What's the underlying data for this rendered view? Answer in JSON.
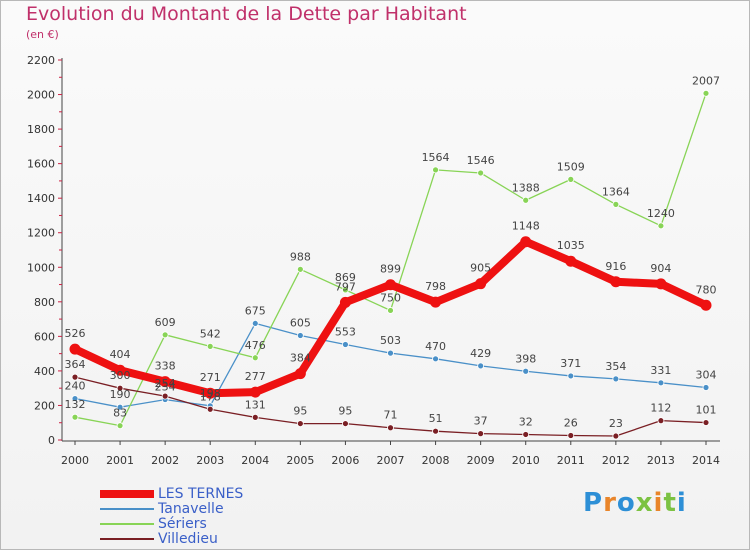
{
  "title": "Evolution du Montant de la Dette par Habitant",
  "subtitle": "(en €)",
  "logo": {
    "text": "Proxiti",
    "colors": [
      "#2d8fd6",
      "#e9852a",
      "#2d8fd6",
      "#7cc242",
      "#e9852a",
      "#7cc242",
      "#2d8fd6"
    ]
  },
  "chart_data": {
    "type": "line",
    "x": [
      "2000",
      "2001",
      "2002",
      "2003",
      "2004",
      "2005",
      "2006",
      "2007",
      "2008",
      "2009",
      "2010",
      "2011",
      "2012",
      "2013",
      "2014"
    ],
    "ylim": [
      0,
      2200
    ],
    "yticks": [
      0,
      200,
      400,
      600,
      800,
      1000,
      1200,
      1400,
      1600,
      1800,
      2000,
      2200
    ],
    "grid": false,
    "legend_position": "bottom-left",
    "series": [
      {
        "name": "LES TERNES",
        "color": "#ee1111",
        "values": [
          526,
          404,
          338,
          271,
          277,
          384,
          797,
          899,
          798,
          905,
          1148,
          1035,
          916,
          904,
          780
        ]
      },
      {
        "name": "Tanavelle",
        "color": "#4a90c8",
        "values": [
          240,
          190,
          234,
          198,
          675,
          605,
          553,
          503,
          470,
          429,
          398,
          371,
          354,
          331,
          304
        ]
      },
      {
        "name": "Sériers",
        "color": "#88d456",
        "values": [
          132,
          83,
          609,
          542,
          476,
          988,
          869,
          750,
          1564,
          1546,
          1388,
          1509,
          1364,
          1240,
          2007
        ]
      },
      {
        "name": "Villedieu",
        "color": "#7a1f24",
        "values": [
          364,
          300,
          254,
          178,
          131,
          95,
          95,
          71,
          51,
          37,
          32,
          26,
          23,
          112,
          101
        ]
      }
    ]
  }
}
